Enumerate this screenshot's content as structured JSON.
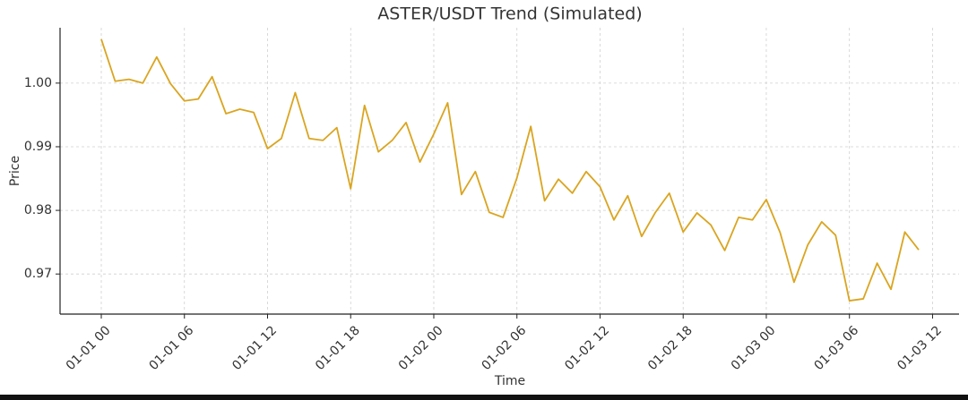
{
  "chart_data": {
    "type": "line",
    "title": "ASTER/USDT Trend (Simulated)",
    "x_label": "Time",
    "y_label": "Price",
    "x": [
      "01-01 00",
      "01-01 01",
      "01-01 02",
      "01-01 03",
      "01-01 04",
      "01-01 05",
      "01-01 06",
      "01-01 07",
      "01-01 08",
      "01-01 09",
      "01-01 10",
      "01-01 11",
      "01-01 12",
      "01-01 13",
      "01-01 14",
      "01-01 15",
      "01-01 16",
      "01-01 17",
      "01-01 18",
      "01-01 19",
      "01-01 20",
      "01-01 21",
      "01-01 22",
      "01-01 23",
      "01-02 00",
      "01-02 01",
      "01-02 02",
      "01-02 03",
      "01-02 04",
      "01-02 05",
      "01-02 06",
      "01-02 07",
      "01-02 08",
      "01-02 09",
      "01-02 10",
      "01-02 11",
      "01-02 12",
      "01-02 13",
      "01-02 14",
      "01-02 15",
      "01-02 16",
      "01-02 17",
      "01-02 18",
      "01-02 19",
      "01-02 20",
      "01-02 21",
      "01-02 22",
      "01-02 23",
      "01-03 00",
      "01-03 01",
      "01-03 02",
      "01-03 03",
      "01-03 04",
      "01-03 05",
      "01-03 06",
      "01-03 07",
      "01-03 08",
      "01-03 09",
      "01-03 10",
      "01-03 11"
    ],
    "series": [
      {
        "name": "ASTER/USDT",
        "color": "#daa520",
        "values": [
          1.0069,
          1.0003,
          1.0006,
          1.0,
          1.0041,
          0.9999,
          0.9972,
          0.9975,
          1.001,
          0.9952,
          0.9959,
          0.9954,
          0.9897,
          0.9913,
          0.9985,
          0.9913,
          0.991,
          0.993,
          0.9834,
          0.9965,
          0.9892,
          0.991,
          0.9938,
          0.9876,
          0.992,
          0.9969,
          0.9825,
          0.9861,
          0.9797,
          0.9789,
          0.9851,
          0.9932,
          0.9815,
          0.9849,
          0.9827,
          0.9861,
          0.9837,
          0.9785,
          0.9823,
          0.9759,
          0.9797,
          0.9827,
          0.9766,
          0.9796,
          0.9777,
          0.9737,
          0.9789,
          0.9785,
          0.9817,
          0.9765,
          0.9687,
          0.9746,
          0.9782,
          0.9761,
          0.9658,
          0.9661,
          0.9717,
          0.9676,
          0.9766,
          0.9738
        ]
      }
    ],
    "xticks": [
      "01-01 00",
      "01-01 06",
      "01-01 12",
      "01-01 18",
      "01-02 00",
      "01-02 06",
      "01-02 12",
      "01-02 18",
      "01-03 00",
      "01-03 06",
      "01-03 12"
    ],
    "ylim": [
      0.9637,
      1.0087
    ],
    "yticks": [
      0.97,
      0.98,
      0.99,
      {
        "value": 1,
        "label": "1.00"
      }
    ],
    "grid": true
  }
}
